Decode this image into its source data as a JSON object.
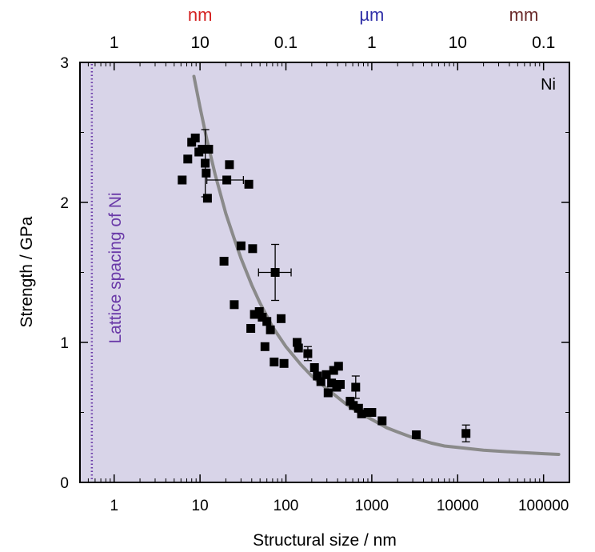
{
  "chart_data": {
    "type": "scatter",
    "title": "",
    "xlabel": "Structural size / nm",
    "ylabel": "Strength / GPa",
    "xscale": "log",
    "xlim": [
      0.4,
      200000
    ],
    "ylim": [
      0,
      3
    ],
    "x_ticks": [
      {
        "value": 1,
        "label": "1"
      },
      {
        "value": 10,
        "label": "10"
      },
      {
        "value": 100,
        "label": "100"
      },
      {
        "value": 1000,
        "label": "1000"
      },
      {
        "value": 10000,
        "label": "10000"
      },
      {
        "value": 100000,
        "label": "100000"
      }
    ],
    "y_ticks": [
      {
        "value": 0,
        "label": "0"
      },
      {
        "value": 1,
        "label": "1"
      },
      {
        "value": 2,
        "label": "2"
      },
      {
        "value": 3,
        "label": "3"
      }
    ],
    "top_axis": {
      "units": [
        {
          "label": "nm",
          "color": "#d42020",
          "at": 10
        },
        {
          "label": "µm",
          "color": "#3030a8",
          "at": 1000
        },
        {
          "label": "mm",
          "color": "#6a2a2a",
          "at": 1000000
        }
      ],
      "ticks": [
        {
          "value": 1,
          "label": "1"
        },
        {
          "value": 10,
          "label": "10"
        },
        {
          "value": 100,
          "label": "0.1"
        },
        {
          "value": 1000,
          "label": "1"
        },
        {
          "value": 10000,
          "label": "10"
        },
        {
          "value": 100000,
          "label": "0.1"
        }
      ]
    },
    "annotations": [
      {
        "text": "Ni",
        "position": "top-right"
      },
      {
        "text": "Lattice spacing of Ni",
        "x": 0.55,
        "color": "#6a3aa8",
        "style": "vertical dotted line with rotated label"
      }
    ],
    "background_color": "#d8d4e8",
    "marker_color": "#000000",
    "fit_curve_color": "#8a8a8a",
    "fit_curve": {
      "x": [
        8.5,
        10,
        12,
        15,
        20,
        25,
        30,
        40,
        50,
        70,
        100,
        150,
        200,
        300,
        500,
        700,
        1000,
        1500,
        2000,
        3000,
        5000,
        7000,
        10000,
        20000,
        50000,
        100000,
        150000
      ],
      "y": [
        2.9,
        2.68,
        2.45,
        2.2,
        1.92,
        1.74,
        1.6,
        1.41,
        1.28,
        1.11,
        0.97,
        0.84,
        0.76,
        0.67,
        0.56,
        0.5,
        0.45,
        0.39,
        0.36,
        0.32,
        0.28,
        0.26,
        0.25,
        0.23,
        0.215,
        0.205,
        0.2
      ]
    },
    "series": [
      {
        "points": [
          {
            "x": 6.2,
            "y": 2.16
          },
          {
            "x": 7.2,
            "y": 2.31
          },
          {
            "x": 8.0,
            "y": 2.43
          },
          {
            "x": 8.8,
            "y": 2.46
          },
          {
            "x": 9.7,
            "y": 2.36
          },
          {
            "x": 10.6,
            "y": 2.38
          },
          {
            "x": 11.5,
            "y": 2.28,
            "yerr": 0.24
          },
          {
            "x": 11.8,
            "y": 2.21
          },
          {
            "x": 12.2,
            "y": 2.03
          },
          {
            "x": 12.6,
            "y": 2.38
          },
          {
            "x": 20.5,
            "y": 2.16,
            "xerr_low": 12,
            "xerr_high": 32
          },
          {
            "x": 22,
            "y": 2.27
          },
          {
            "x": 37,
            "y": 2.13
          },
          {
            "x": 19,
            "y": 1.58
          },
          {
            "x": 30,
            "y": 1.69
          },
          {
            "x": 41,
            "y": 1.67
          },
          {
            "x": 75,
            "y": 1.5,
            "yerr": 0.2,
            "xerr_low": 48,
            "xerr_high": 115
          },
          {
            "x": 25,
            "y": 1.27
          },
          {
            "x": 39,
            "y": 1.1
          },
          {
            "x": 43,
            "y": 1.2
          },
          {
            "x": 49,
            "y": 1.22
          },
          {
            "x": 53,
            "y": 1.18
          },
          {
            "x": 60,
            "y": 1.15
          },
          {
            "x": 66,
            "y": 1.09
          },
          {
            "x": 88,
            "y": 1.17
          },
          {
            "x": 57,
            "y": 0.97
          },
          {
            "x": 73,
            "y": 0.86
          },
          {
            "x": 95,
            "y": 0.85
          },
          {
            "x": 135,
            "y": 1.0
          },
          {
            "x": 140,
            "y": 0.96
          },
          {
            "x": 180,
            "y": 0.92,
            "yerr": 0.05
          },
          {
            "x": 215,
            "y": 0.82
          },
          {
            "x": 232,
            "y": 0.76
          },
          {
            "x": 255,
            "y": 0.72
          },
          {
            "x": 295,
            "y": 0.77
          },
          {
            "x": 310,
            "y": 0.64
          },
          {
            "x": 340,
            "y": 0.71
          },
          {
            "x": 360,
            "y": 0.8
          },
          {
            "x": 390,
            "y": 0.68
          },
          {
            "x": 410,
            "y": 0.83
          },
          {
            "x": 430,
            "y": 0.7
          },
          {
            "x": 560,
            "y": 0.58
          },
          {
            "x": 610,
            "y": 0.55
          },
          {
            "x": 650,
            "y": 0.68,
            "yerr": 0.08
          },
          {
            "x": 700,
            "y": 0.53
          },
          {
            "x": 760,
            "y": 0.49
          },
          {
            "x": 900,
            "y": 0.5
          },
          {
            "x": 1000,
            "y": 0.5
          },
          {
            "x": 1320,
            "y": 0.44
          },
          {
            "x": 3300,
            "y": 0.34
          },
          {
            "x": 12500,
            "y": 0.35,
            "yerr": 0.06
          }
        ]
      }
    ]
  }
}
